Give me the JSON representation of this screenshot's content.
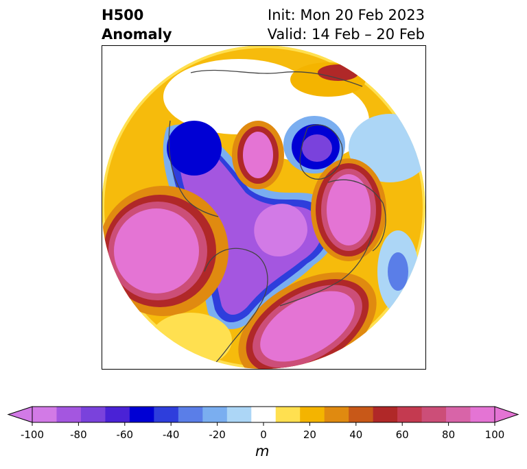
{
  "header": {
    "title_line1": "H500",
    "title_line2": "Anomaly",
    "init_text": "Init: Mon 20 Feb 2023",
    "valid_text": "Valid: 14 Feb – 20 Feb"
  },
  "colorbar": {
    "ticks": [
      "-100",
      "-80",
      "-60",
      "-40",
      "-20",
      "0",
      "20",
      "40",
      "60",
      "80",
      "100"
    ],
    "units": "m",
    "colors": [
      "#d27ae6",
      "#a456e0",
      "#7a42dc",
      "#4a22d6",
      "#0000d4",
      "#2e3edc",
      "#5a7ee8",
      "#7aaef0",
      "#acd6f6",
      "#ffffff",
      "#ffe050",
      "#f4b400",
      "#e08a10",
      "#c85818",
      "#b02828",
      "#c43a50",
      "#cc4e78",
      "#d864a8",
      "#e474d4"
    ]
  },
  "map": {
    "projection": "north-polar-stereographic",
    "field": "500 hPa geopotential height anomaly"
  }
}
